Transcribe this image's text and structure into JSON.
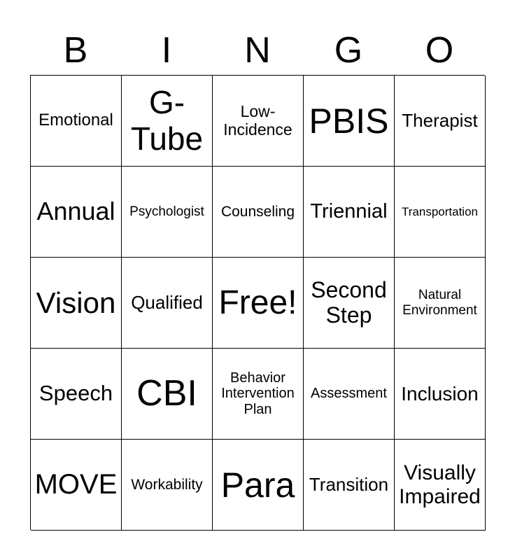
{
  "header": {
    "letters": [
      "B",
      "I",
      "N",
      "G",
      "O"
    ]
  },
  "cells": [
    [
      "Emotional",
      "G-Tube",
      "Low-Incidence",
      "PBIS",
      "Therapist"
    ],
    [
      "Annual",
      "Psychologist",
      "Counseling",
      "Triennial",
      "Transportation"
    ],
    [
      "Vision",
      "Qualified",
      "Free!",
      "Second Step",
      "Natural Environment"
    ],
    [
      "Speech",
      "CBI",
      "Behavior Intervention Plan",
      "Assessment",
      "Inclusion"
    ],
    [
      "MOVE",
      "Workability",
      "Para",
      "Transition",
      "Visually Impaired"
    ]
  ]
}
